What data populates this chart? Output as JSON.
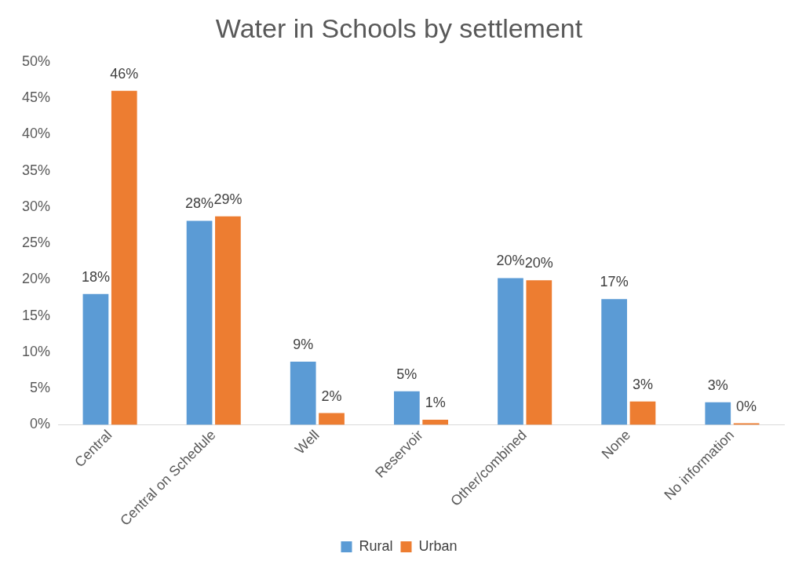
{
  "chart_data": {
    "type": "bar",
    "title": "Water in Schools by settlement",
    "categories": [
      "Central",
      "Central on Schedule",
      "Well",
      "Reservoir",
      "Other/combined",
      "None",
      "No information"
    ],
    "series": [
      {
        "name": "Rural",
        "color": "#5b9bd5",
        "values": [
          18.0,
          28.1,
          8.7,
          4.6,
          20.2,
          17.3,
          3.1
        ],
        "value_labels": [
          "18%",
          "28%",
          "9%",
          "5%",
          "20%",
          "17%",
          "3%"
        ]
      },
      {
        "name": "Urban",
        "color": "#ed7d31",
        "values": [
          46.0,
          28.7,
          1.6,
          0.7,
          19.9,
          3.2,
          0.2
        ],
        "value_labels": [
          "46%",
          "29%",
          "2%",
          "1%",
          "20%",
          "3%",
          "0%"
        ]
      }
    ],
    "ylim": [
      0,
      50
    ],
    "yticks": [
      {
        "value": 0,
        "label": "0%"
      },
      {
        "value": 5,
        "label": "5%"
      },
      {
        "value": 10,
        "label": "10%"
      },
      {
        "value": 15,
        "label": "15%"
      },
      {
        "value": 20,
        "label": "20%"
      },
      {
        "value": 25,
        "label": "25%"
      },
      {
        "value": 30,
        "label": "30%"
      },
      {
        "value": 35,
        "label": "35%"
      },
      {
        "value": 40,
        "label": "40%"
      },
      {
        "value": 45,
        "label": "45%"
      },
      {
        "value": 50,
        "label": "50%"
      }
    ],
    "grid": false,
    "legend": "bottom"
  }
}
